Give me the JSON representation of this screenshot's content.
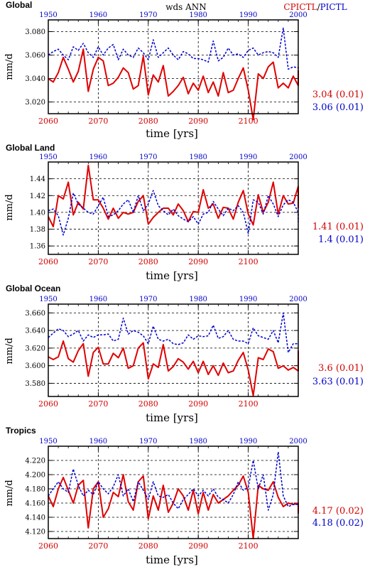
{
  "header": {
    "center_text": "wds ANN",
    "right_red": "CPICTL",
    "right_sep": "/",
    "right_blue": "PICTL"
  },
  "colors": {
    "cpictl": "#e00000",
    "pictl": "#0000d0"
  },
  "chart_data": [
    {
      "type": "line",
      "title": "Global",
      "ylabel": "mm/d",
      "xlabel": "time [yrs]",
      "x_bottom": {
        "label_color": "red",
        "range": [
          2060,
          2110
        ],
        "ticks": [
          "2060",
          "2070",
          "2080",
          "2090",
          "2100"
        ]
      },
      "x_top": {
        "label_color": "blue",
        "range": [
          1950,
          2000
        ],
        "ticks": [
          "1950",
          "1960",
          "1970",
          "1980",
          "1990",
          "2000"
        ]
      },
      "ylim": [
        3.01,
        3.09
      ],
      "yticks": [
        "3.020",
        "3.040",
        "3.060",
        "3.080"
      ],
      "grid": true,
      "stats": {
        "red": "3.04 (0.01)",
        "blue": "3.06 (0.01)"
      },
      "series": [
        {
          "name": "CPICTL",
          "axis": "bottom",
          "x_start": 2060,
          "values": [
            3.04,
            3.037,
            3.045,
            3.058,
            3.048,
            3.037,
            3.046,
            3.065,
            3.029,
            3.048,
            3.058,
            3.055,
            3.034,
            3.036,
            3.041,
            3.049,
            3.045,
            3.031,
            3.034,
            3.059,
            3.026,
            3.043,
            3.037,
            3.051,
            3.025,
            3.029,
            3.034,
            3.041,
            3.027,
            3.036,
            3.03,
            3.042,
            3.028,
            3.037,
            3.025,
            3.045,
            3.028,
            3.03,
            3.04,
            3.049,
            3.03,
            3.005,
            3.044,
            3.04,
            3.05,
            3.054,
            3.032,
            3.036,
            3.032,
            3.042,
            3.034,
            3.047
          ]
        },
        {
          "name": "PICTL",
          "axis": "top",
          "x_start": 1950,
          "values": [
            3.06,
            3.063,
            3.065,
            3.06,
            3.056,
            3.067,
            3.064,
            3.07,
            3.062,
            3.058,
            3.067,
            3.06,
            3.066,
            3.069,
            3.056,
            3.065,
            3.06,
            3.058,
            3.066,
            3.062,
            3.056,
            3.073,
            3.058,
            3.062,
            3.066,
            3.06,
            3.056,
            3.063,
            3.061,
            3.057,
            3.057,
            3.056,
            3.054,
            3.072,
            3.055,
            3.058,
            3.066,
            3.06,
            3.061,
            3.058,
            3.064,
            3.066,
            3.06,
            3.062,
            3.063,
            3.062,
            3.058,
            3.083,
            3.048,
            3.05,
            3.049,
            3.05
          ]
        }
      ]
    },
    {
      "type": "line",
      "title": "Global Land",
      "ylabel": "mm/d",
      "xlabel": "time [yrs]",
      "x_bottom": {
        "label_color": "red",
        "range": [
          2060,
          2110
        ],
        "ticks": [
          "2060",
          "2070",
          "2080",
          "2090",
          "2100"
        ]
      },
      "x_top": {
        "label_color": "blue",
        "range": [
          1950,
          2000
        ],
        "ticks": [
          "1950",
          "1960",
          "1970",
          "1980",
          "1990",
          "2000"
        ]
      },
      "ylim": [
        1.35,
        1.46
      ],
      "yticks": [
        "1.36",
        "1.38",
        "1.40",
        "1.42",
        "1.44"
      ],
      "grid": true,
      "stats": {
        "red": "1.41 (0.01)",
        "blue": "1.4 (0.01)"
      },
      "series": [
        {
          "name": "CPICTL",
          "axis": "bottom",
          "x_start": 2060,
          "values": [
            1.395,
            1.383,
            1.42,
            1.416,
            1.436,
            1.397,
            1.412,
            1.404,
            1.456,
            1.415,
            1.415,
            1.405,
            1.392,
            1.405,
            1.393,
            1.4,
            1.398,
            1.4,
            1.413,
            1.42,
            1.386,
            1.394,
            1.4,
            1.405,
            1.405,
            1.397,
            1.41,
            1.402,
            1.389,
            1.401,
            1.4,
            1.427,
            1.405,
            1.41,
            1.393,
            1.406,
            1.405,
            1.392,
            1.412,
            1.426,
            1.398,
            1.385,
            1.421,
            1.4,
            1.412,
            1.436,
            1.398,
            1.42,
            1.41,
            1.411,
            1.431,
            1.42,
            1.405
          ]
        },
        {
          "name": "PICTL",
          "axis": "top",
          "x_start": 1950,
          "values": [
            1.402,
            1.404,
            1.396,
            1.373,
            1.393,
            1.423,
            1.41,
            1.405,
            1.4,
            1.398,
            1.408,
            1.418,
            1.395,
            1.397,
            1.402,
            1.41,
            1.415,
            1.4,
            1.42,
            1.402,
            1.41,
            1.426,
            1.408,
            1.402,
            1.397,
            1.404,
            1.396,
            1.392,
            1.389,
            1.395,
            1.386,
            1.398,
            1.4,
            1.413,
            1.404,
            1.396,
            1.405,
            1.402,
            1.408,
            1.4,
            1.375,
            1.415,
            1.412,
            1.398,
            1.42,
            1.41,
            1.395,
            1.409,
            1.415,
            1.412,
            1.4,
            1.389,
            1.39
          ]
        }
      ]
    },
    {
      "type": "line",
      "title": "Global Ocean",
      "ylabel": "mm/d",
      "xlabel": "time [yrs]",
      "x_bottom": {
        "label_color": "red",
        "range": [
          2060,
          2110
        ],
        "ticks": [
          "2060",
          "2070",
          "2080",
          "2090",
          "2100"
        ]
      },
      "x_top": {
        "label_color": "blue",
        "range": [
          1950,
          2000
        ],
        "ticks": [
          "1950",
          "1960",
          "1970",
          "1980",
          "1990",
          "2000"
        ]
      },
      "ylim": [
        3.565,
        3.67
      ],
      "yticks": [
        "3.580",
        "3.600",
        "3.620",
        "3.640",
        "3.660"
      ],
      "grid": true,
      "stats": {
        "red": "3.6 (0.01)",
        "blue": "3.63 (0.01)"
      },
      "series": [
        {
          "name": "CPICTL",
          "axis": "bottom",
          "x_start": 2060,
          "values": [
            3.61,
            3.607,
            3.61,
            3.628,
            3.608,
            3.604,
            3.617,
            3.625,
            3.588,
            3.615,
            3.621,
            3.602,
            3.602,
            3.614,
            3.609,
            3.62,
            3.597,
            3.6,
            3.62,
            3.626,
            3.585,
            3.602,
            3.598,
            3.624,
            3.594,
            3.599,
            3.608,
            3.604,
            3.596,
            3.605,
            3.592,
            3.605,
            3.59,
            3.6,
            3.589,
            3.603,
            3.592,
            3.594,
            3.606,
            3.615,
            3.595,
            3.566,
            3.609,
            3.607,
            3.619,
            3.616,
            3.597,
            3.6,
            3.595,
            3.598,
            3.594,
            3.617
          ]
        },
        {
          "name": "PICTL",
          "axis": "top",
          "x_start": 1950,
          "values": [
            3.632,
            3.637,
            3.642,
            3.64,
            3.633,
            3.636,
            3.64,
            3.628,
            3.635,
            3.632,
            3.635,
            3.635,
            3.636,
            3.628,
            3.63,
            3.654,
            3.636,
            3.64,
            3.638,
            3.634,
            3.625,
            3.645,
            3.63,
            3.628,
            3.63,
            3.625,
            3.624,
            3.626,
            3.635,
            3.63,
            3.634,
            3.633,
            3.634,
            3.646,
            3.631,
            3.633,
            3.64,
            3.63,
            3.628,
            3.628,
            3.625,
            3.643,
            3.634,
            3.632,
            3.63,
            3.64,
            3.626,
            3.66,
            3.615,
            3.625,
            3.625
          ]
        }
      ]
    },
    {
      "type": "line",
      "title": "Tropics",
      "ylabel": "mm/d",
      "xlabel": "time [yrs]",
      "x_bottom": {
        "label_color": "red",
        "range": [
          2060,
          2110
        ],
        "ticks": [
          "2060",
          "2070",
          "2080",
          "2090",
          "2100"
        ]
      },
      "x_top": {
        "label_color": "blue",
        "range": [
          1950,
          2000
        ],
        "ticks": [
          "1950",
          "1960",
          "1970",
          "1980",
          "1990",
          "2000"
        ]
      },
      "ylim": [
        4.11,
        4.24
      ],
      "yticks": [
        "4.120",
        "4.140",
        "4.160",
        "4.180",
        "4.200",
        "4.220"
      ],
      "grid": true,
      "stats": {
        "red": "4.17 (0.02)",
        "blue": "4.18 (0.02)"
      },
      "series": [
        {
          "name": "CPICTL",
          "axis": "bottom",
          "x_start": 2060,
          "values": [
            4.17,
            4.155,
            4.18,
            4.196,
            4.178,
            4.16,
            4.185,
            4.192,
            4.125,
            4.18,
            4.19,
            4.14,
            4.152,
            4.175,
            4.169,
            4.2,
            4.162,
            4.15,
            4.19,
            4.198,
            4.138,
            4.17,
            4.15,
            4.185,
            4.147,
            4.16,
            4.18,
            4.17,
            4.15,
            4.178,
            4.145,
            4.175,
            4.15,
            4.172,
            4.16,
            4.165,
            4.17,
            4.178,
            4.185,
            4.198,
            4.175,
            4.11,
            4.185,
            4.18,
            4.178,
            4.19,
            4.168,
            4.155,
            4.16,
            4.158,
            4.16,
            4.145
          ]
        },
        {
          "name": "PICTL",
          "axis": "top",
          "x_start": 1950,
          "values": [
            4.17,
            4.18,
            4.19,
            4.18,
            4.175,
            4.208,
            4.185,
            4.17,
            4.178,
            4.172,
            4.19,
            4.18,
            4.173,
            4.183,
            4.2,
            4.17,
            4.18,
            4.162,
            4.19,
            4.178,
            4.165,
            4.19,
            4.17,
            4.168,
            4.172,
            4.16,
            4.152,
            4.165,
            4.172,
            4.18,
            4.17,
            4.178,
            4.17,
            4.18,
            4.168,
            4.165,
            4.16,
            4.172,
            4.19,
            4.178,
            4.182,
            4.22,
            4.18,
            4.2,
            4.15,
            4.172,
            4.232,
            4.17,
            4.155,
            4.158,
            4.158
          ]
        }
      ]
    }
  ]
}
